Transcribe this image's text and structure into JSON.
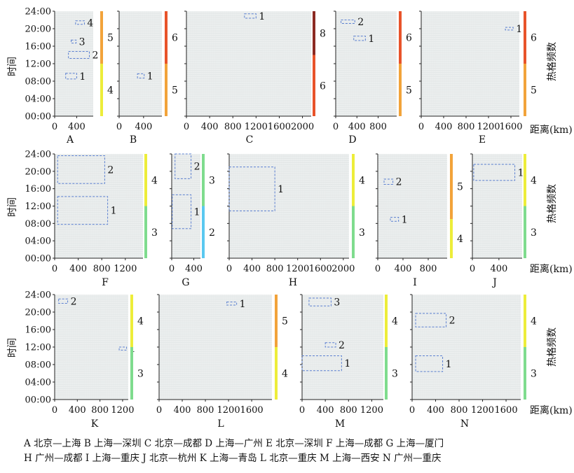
{
  "y_axis_label": "时间",
  "x_axis_unit": "距离(km)",
  "colorbar_label": "热格频数",
  "captions": [
    "A 北京—上海 B 上海—深圳 C 北京—成都 D 上海—广州 E 北京—深圳 F 上海—成都 G 上海—厦门",
    "H 广州—成都 I 上海—重庆 J 北京—杭州 K 上海—青岛 L 北京—重庆 M 上海—西安 N 广州—重庆"
  ],
  "chart_data": [
    {
      "id": "A",
      "title": "A",
      "type": "heatmap",
      "xlim": [
        0,
        700
      ],
      "xticks": [
        0,
        400
      ],
      "ylim": [
        0,
        24
      ],
      "yticks": [
        "00:00",
        "04:00",
        "08:00",
        "12:00",
        "16:00",
        "20:00",
        "24:00"
      ],
      "colorbar": [
        {
          "value": "4",
          "color": "#eded3a",
          "range": [
            0,
            12
          ]
        },
        {
          "value": "5",
          "color": "#f2a33a",
          "range": [
            12,
            24
          ]
        }
      ],
      "hotspots": [
        {
          "label": "1",
          "x": [
            200,
            400
          ],
          "y": [
            8.5,
            9.8
          ]
        },
        {
          "label": "2",
          "x": [
            250,
            630
          ],
          "y": [
            13.2,
            14.8
          ]
        },
        {
          "label": "3",
          "x": [
            300,
            390
          ],
          "y": [
            16.7,
            17.4
          ]
        },
        {
          "label": "4",
          "x": [
            380,
            540
          ],
          "y": [
            21,
            21.8
          ]
        }
      ]
    },
    {
      "id": "B",
      "title": "B",
      "type": "heatmap",
      "xlim": [
        0,
        700
      ],
      "xticks": [
        0,
        400
      ],
      "ylim": [
        0,
        24
      ],
      "colorbar": [
        {
          "value": "5",
          "color": "#f2a33a",
          "range": [
            0,
            12
          ]
        },
        {
          "value": "6",
          "color": "#e8532a",
          "range": [
            12,
            24
          ]
        }
      ],
      "hotspots": [
        {
          "label": "1",
          "x": [
            300,
            410
          ],
          "y": [
            8.7,
            9.7
          ]
        }
      ]
    },
    {
      "id": "C",
      "title": "C",
      "type": "heatmap",
      "xlim": [
        0,
        2150
      ],
      "xticks": [
        0,
        400,
        800,
        1200,
        1600,
        2000
      ],
      "ylim": [
        0,
        24
      ],
      "colorbar": [
        {
          "value": "6",
          "color": "#e8532a",
          "range": [
            0,
            14
          ]
        },
        {
          "value": "8",
          "color": "#8c2a22",
          "range": [
            14,
            24
          ]
        }
      ],
      "hotspots": [
        {
          "label": "1",
          "x": [
            1000,
            1200
          ],
          "y": [
            22.4,
            23.4
          ]
        }
      ]
    },
    {
      "id": "D",
      "title": "D",
      "type": "heatmap",
      "xlim": [
        0,
        1150
      ],
      "xticks": [
        0,
        400,
        800
      ],
      "ylim": [
        0,
        24
      ],
      "colorbar": [
        {
          "value": "5",
          "color": "#f2a33a",
          "range": [
            0,
            12
          ]
        },
        {
          "value": "6",
          "color": "#e8532a",
          "range": [
            12,
            24
          ]
        }
      ],
      "hotspots": [
        {
          "label": "1",
          "x": [
            340,
            560
          ],
          "y": [
            17.3,
            18.3
          ]
        },
        {
          "label": "2",
          "x": [
            100,
            360
          ],
          "y": [
            21.2,
            22
          ]
        }
      ]
    },
    {
      "id": "E",
      "title": "E",
      "type": "heatmap",
      "xlim": [
        0,
        1750
      ],
      "xticks": [
        0,
        400,
        800,
        1200,
        1600
      ],
      "ylim": [
        0,
        24
      ],
      "colorbar": [
        {
          "value": "5",
          "color": "#f2a33a",
          "range": [
            0,
            12
          ]
        },
        {
          "value": "6",
          "color": "#e8532a",
          "range": [
            12,
            24
          ]
        }
      ],
      "hotspots": [
        {
          "label": "1",
          "x": [
            1500,
            1640
          ],
          "y": [
            19.7,
            20.3
          ]
        }
      ]
    },
    {
      "id": "F",
      "title": "F",
      "type": "heatmap",
      "xlim": [
        0,
        1500
      ],
      "xticks": [
        0,
        400,
        800,
        1200
      ],
      "ylim": [
        0,
        24
      ],
      "colorbar": [
        {
          "value": "3",
          "color": "#7fdc8e",
          "range": [
            0,
            12
          ]
        },
        {
          "value": "4",
          "color": "#eded3a",
          "range": [
            12,
            24
          ]
        }
      ],
      "hotspots": [
        {
          "label": "1",
          "x": [
            50,
            900
          ],
          "y": [
            7.8,
            14.2
          ]
        },
        {
          "label": "2",
          "x": [
            50,
            850
          ],
          "y": [
            17.2,
            23.6
          ]
        }
      ]
    },
    {
      "id": "G",
      "title": "G",
      "type": "heatmap",
      "xlim": [
        0,
        520
      ],
      "xticks": [
        0,
        400
      ],
      "ylim": [
        0,
        24
      ],
      "colorbar": [
        {
          "value": "2",
          "color": "#5ac8f0",
          "range": [
            0,
            12
          ]
        },
        {
          "value": "3",
          "color": "#7fdc8e",
          "range": [
            12,
            24
          ]
        }
      ],
      "hotspots": [
        {
          "label": "1",
          "x": [
            10,
            350
          ],
          "y": [
            6.8,
            14.6
          ]
        },
        {
          "label": "2",
          "x": [
            60,
            350
          ],
          "y": [
            18.3,
            24
          ]
        }
      ]
    },
    {
      "id": "H",
      "title": "H",
      "type": "heatmap",
      "xlim": [
        0,
        2100
      ],
      "xticks": [
        0,
        400,
        800,
        1200,
        1600,
        2000
      ],
      "ylim": [
        0,
        24
      ],
      "colorbar": [
        {
          "value": "3",
          "color": "#7fdc8e",
          "range": [
            0,
            12
          ]
        },
        {
          "value": "4",
          "color": "#eded3a",
          "range": [
            12,
            24
          ]
        }
      ],
      "hotspots": [
        {
          "label": "1",
          "x": [
            0,
            800
          ],
          "y": [
            10.9,
            21
          ]
        }
      ]
    },
    {
      "id": "I",
      "title": "I",
      "type": "heatmap",
      "xlim": [
        0,
        1100
      ],
      "xticks": [
        0,
        400,
        800
      ],
      "ylim": [
        0,
        24
      ],
      "colorbar": [
        {
          "value": "4",
          "color": "#eded3a",
          "range": [
            0,
            9
          ]
        },
        {
          "value": "5",
          "color": "#f2a33a",
          "range": [
            9,
            24
          ]
        }
      ],
      "hotspots": [
        {
          "label": "1",
          "x": [
            200,
            330
          ],
          "y": [
            8.5,
            9.4
          ]
        },
        {
          "label": "2",
          "x": [
            100,
            240
          ],
          "y": [
            17,
            18.2
          ]
        }
      ]
    },
    {
      "id": "J",
      "title": "J",
      "type": "heatmap",
      "xlim": [
        0,
        750
      ],
      "xticks": [
        0,
        400
      ],
      "ylim": [
        0,
        24
      ],
      "colorbar": [
        {
          "value": "3",
          "color": "#7fdc8e",
          "range": [
            0,
            12
          ]
        },
        {
          "value": "4",
          "color": "#eded3a",
          "range": [
            12,
            24
          ]
        }
      ],
      "hotspots": [
        {
          "label": "1",
          "x": [
            20,
            640
          ],
          "y": [
            17.9,
            21.6
          ]
        }
      ]
    },
    {
      "id": "K",
      "title": "K",
      "type": "heatmap",
      "xlim": [
        0,
        1300
      ],
      "xticks": [
        0,
        400,
        800,
        1200
      ],
      "ylim": [
        0,
        24
      ],
      "colorbar": [
        {
          "value": "3",
          "color": "#7fdc8e",
          "range": [
            0,
            12
          ]
        },
        {
          "value": "4",
          "color": "#eded3a",
          "range": [
            12,
            24
          ]
        }
      ],
      "hotspots": [
        {
          "label": "1",
          "x": [
            1140,
            1270
          ],
          "y": [
            11.3,
            12
          ]
        },
        {
          "label": "2",
          "x": [
            70,
            230
          ],
          "y": [
            22,
            23
          ]
        }
      ]
    },
    {
      "id": "L",
      "title": "L",
      "type": "heatmap",
      "xlim": [
        0,
        1950
      ],
      "xticks": [
        0,
        400,
        800,
        1200,
        1600
      ],
      "ylim": [
        0,
        24
      ],
      "colorbar": [
        {
          "value": "4",
          "color": "#eded3a",
          "range": [
            0,
            12
          ]
        },
        {
          "value": "5",
          "color": "#f2a33a",
          "range": [
            12,
            24
          ]
        }
      ],
      "hotspots": [
        {
          "label": "1",
          "x": [
            1170,
            1340
          ],
          "y": [
            21.6,
            22.3
          ]
        }
      ]
    },
    {
      "id": "M",
      "title": "M",
      "type": "heatmap",
      "xlim": [
        0,
        1400
      ],
      "xticks": [
        0,
        400,
        800,
        1200
      ],
      "ylim": [
        0,
        24
      ],
      "colorbar": [
        {
          "value": "3",
          "color": "#7fdc8e",
          "range": [
            0,
            12
          ]
        },
        {
          "value": "4",
          "color": "#eded3a",
          "range": [
            12,
            24
          ]
        }
      ],
      "hotspots": [
        {
          "label": "1",
          "x": [
            0,
            680
          ],
          "y": [
            6.6,
            10
          ]
        },
        {
          "label": "2",
          "x": [
            400,
            580
          ],
          "y": [
            12,
            13
          ]
        },
        {
          "label": "3",
          "x": [
            120,
            500
          ],
          "y": [
            21.4,
            23.2
          ]
        }
      ]
    },
    {
      "id": "N",
      "title": "N",
      "type": "heatmap",
      "xlim": [
        0,
        1850
      ],
      "xticks": [
        0,
        400,
        800,
        1200,
        1600
      ],
      "ylim": [
        0,
        24
      ],
      "colorbar": [
        {
          "value": "3",
          "color": "#7fdc8e",
          "range": [
            0,
            12
          ]
        },
        {
          "value": "4",
          "color": "#eded3a",
          "range": [
            12,
            24
          ]
        }
      ],
      "hotspots": [
        {
          "label": "1",
          "x": [
            60,
            520
          ],
          "y": [
            6.4,
            10
          ]
        },
        {
          "label": "2",
          "x": [
            60,
            580
          ],
          "y": [
            16.6,
            19.7
          ]
        }
      ]
    }
  ]
}
